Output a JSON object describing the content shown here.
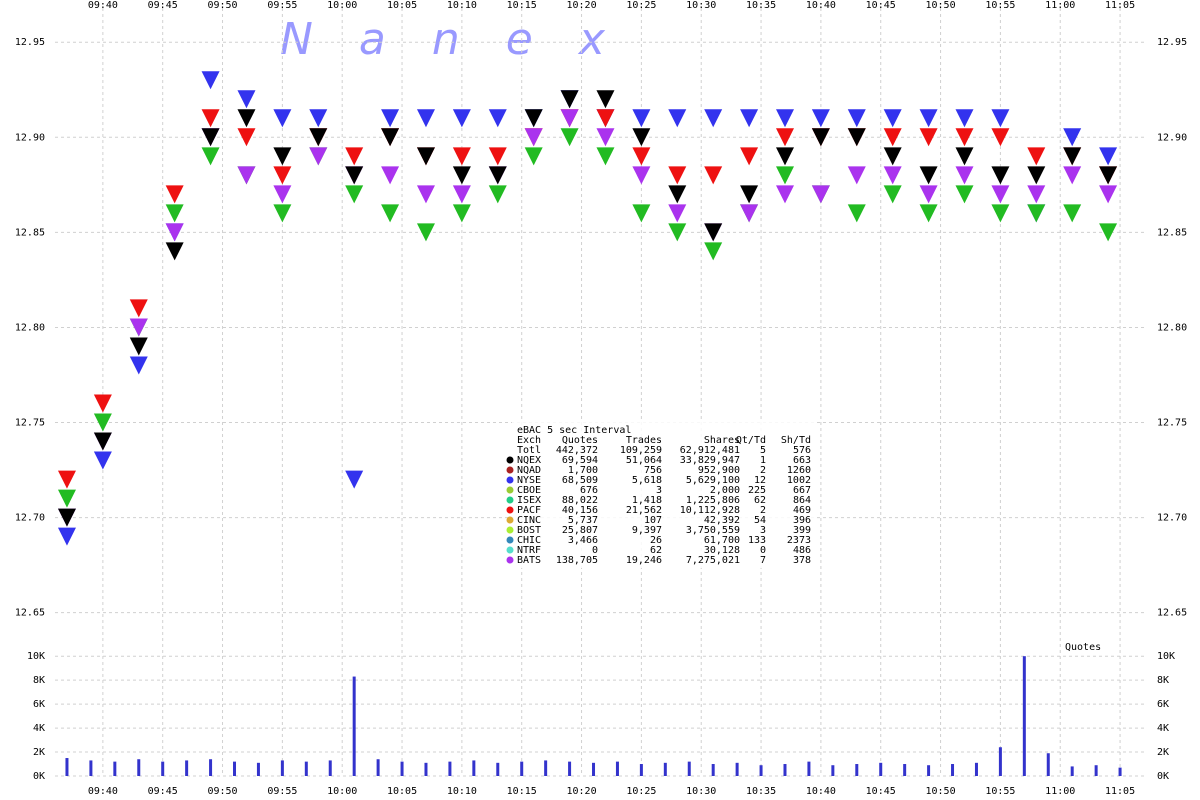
{
  "watermark": "Nanex",
  "chart_data": [
    {
      "type": "scatter",
      "xlim": [
        "09:36",
        "11:07"
      ],
      "xticks": [
        "09:40",
        "09:45",
        "09:50",
        "09:55",
        "10:00",
        "10:05",
        "10:10",
        "10:15",
        "10:20",
        "10:25",
        "10:30",
        "10:35",
        "10:40",
        "10:45",
        "10:50",
        "10:55",
        "11:00",
        "11:05"
      ],
      "ylim": [
        12.633,
        12.968
      ],
      "yticks": [
        12.65,
        {
          "value": 12.7,
          "label": "12.70"
        },
        12.75,
        {
          "value": 12.8,
          "label": "12.80"
        },
        12.85,
        {
          "value": 12.9,
          "label": "12.90"
        },
        12.95
      ],
      "grid": true,
      "x": [
        "09:37",
        "09:40",
        "09:43",
        "09:46",
        "09:49",
        "09:52",
        "09:55",
        "09:58",
        "10:01",
        "10:04",
        "10:07",
        "10:10",
        "10:13",
        "10:16",
        "10:19",
        "10:22",
        "10:25",
        "10:28",
        "10:31",
        "10:34",
        "10:37",
        "10:40",
        "10:43",
        "10:46",
        "10:49",
        "10:52",
        "10:55",
        "10:58",
        "11:01",
        "11:04"
      ],
      "series": [
        {
          "color": "#3333ee",
          "values": [
            12.69,
            12.73,
            12.78,
            12.85,
            12.93,
            12.92,
            12.91,
            12.91,
            12.72,
            12.91,
            12.91,
            12.91,
            12.91,
            12.91,
            12.92,
            12.91,
            12.91,
            12.91,
            12.91,
            12.91,
            12.91,
            12.91,
            12.91,
            12.91,
            12.91,
            12.91,
            12.91,
            12.86,
            12.9,
            12.89
          ]
        },
        {
          "color": "#22bb22",
          "values": [
            12.71,
            12.75,
            12.8,
            12.86,
            12.89,
            12.88,
            12.86,
            12.89,
            12.87,
            12.86,
            12.85,
            12.86,
            12.87,
            12.89,
            12.9,
            12.89,
            12.86,
            12.85,
            12.84,
            12.86,
            12.88,
            12.87,
            12.86,
            12.87,
            12.86,
            12.87,
            12.86,
            12.86,
            12.86,
            12.85
          ]
        },
        {
          "color": "#ee1111",
          "values": [
            12.72,
            12.76,
            12.81,
            12.87,
            12.91,
            12.9,
            12.88,
            12.9,
            12.89,
            12.9,
            12.89,
            12.89,
            12.89,
            12.9,
            12.91,
            12.91,
            12.89,
            12.88,
            12.88,
            12.89,
            12.9,
            12.9,
            12.9,
            12.9,
            12.9,
            12.9,
            12.9,
            12.89,
            12.89,
            12.88
          ]
        },
        {
          "color": "#aa33ee",
          "values": [
            12.7,
            12.74,
            12.8,
            12.85,
            12.9,
            12.88,
            12.87,
            12.89,
            12.88,
            12.88,
            12.87,
            12.87,
            12.88,
            12.9,
            12.91,
            12.9,
            12.88,
            12.86,
            12.85,
            12.86,
            12.87,
            12.87,
            12.88,
            12.88,
            12.87,
            12.88,
            12.87,
            12.87,
            12.88,
            12.87
          ]
        },
        {
          "color": "#000000",
          "values": [
            12.7,
            12.74,
            12.79,
            12.84,
            12.9,
            12.91,
            12.89,
            12.9,
            12.88,
            12.9,
            12.89,
            12.88,
            12.88,
            12.91,
            12.92,
            12.92,
            12.9,
            12.87,
            12.85,
            12.87,
            12.89,
            12.9,
            12.9,
            12.89,
            12.88,
            12.89,
            12.88,
            12.88,
            12.89,
            12.88
          ]
        }
      ]
    },
    {
      "type": "bar",
      "label": "Quotes",
      "color": "#3333cc",
      "ylim": [
        0,
        10600
      ],
      "yticks": [
        {
          "value": 0,
          "label": "0K"
        },
        {
          "value": 2000,
          "label": "2K"
        },
        {
          "value": 4000,
          "label": "4K"
        },
        {
          "value": 6000,
          "label": "6K"
        },
        {
          "value": 8000,
          "label": "8K"
        },
        {
          "value": 10000,
          "label": "10K"
        }
      ],
      "x": [
        "09:37",
        "09:39",
        "09:41",
        "09:43",
        "09:45",
        "09:47",
        "09:49",
        "09:51",
        "09:53",
        "09:55",
        "09:57",
        "09:59",
        "10:01",
        "10:03",
        "10:05",
        "10:07",
        "10:09",
        "10:11",
        "10:13",
        "10:15",
        "10:17",
        "10:19",
        "10:21",
        "10:23",
        "10:25",
        "10:27",
        "10:29",
        "10:31",
        "10:33",
        "10:35",
        "10:37",
        "10:39",
        "10:41",
        "10:43",
        "10:45",
        "10:47",
        "10:49",
        "10:51",
        "10:53",
        "10:55",
        "10:57",
        "10:59",
        "11:01",
        "11:03",
        "11:05"
      ],
      "values": [
        1500,
        1300,
        1200,
        1400,
        1200,
        1300,
        1400,
        1200,
        1100,
        1300,
        1200,
        1300,
        8300,
        1400,
        1200,
        1100,
        1200,
        1300,
        1100,
        1200,
        1300,
        1200,
        1100,
        1200,
        1000,
        1100,
        1200,
        1000,
        1100,
        900,
        1000,
        1200,
        900,
        1000,
        1100,
        1000,
        900,
        1000,
        1100,
        2400,
        10000,
        1900,
        800,
        900,
        700
      ]
    }
  ],
  "stats": {
    "title": "eBAC 5 sec Interval",
    "header": [
      "Exch",
      "Quotes",
      "Trades",
      "Shares",
      "Qt/Td",
      "Sh/Td"
    ],
    "rows": [
      {
        "cells": [
          "Totl",
          "442,372",
          "109,259",
          "62,912,481",
          "5",
          "576"
        ]
      },
      {
        "color": "#000000",
        "cells": [
          "NQEX",
          "69,594",
          "51,064",
          "33,829,947",
          "1",
          "663"
        ]
      },
      {
        "color": "#aa2222",
        "cells": [
          "NQAD",
          "1,700",
          "756",
          "952,900",
          "2",
          "1260"
        ]
      },
      {
        "color": "#3333ee",
        "cells": [
          "NYSE",
          "68,509",
          "5,618",
          "5,629,100",
          "12",
          "1002"
        ]
      },
      {
        "color": "#99cc33",
        "cells": [
          "CBOE",
          "676",
          "3",
          "2,000",
          "225",
          "667"
        ]
      },
      {
        "color": "#22cc88",
        "cells": [
          "ISEX",
          "88,022",
          "1,418",
          "1,225,806",
          "62",
          "864"
        ]
      },
      {
        "color": "#ee1111",
        "cells": [
          "PACF",
          "40,156",
          "21,562",
          "10,112,928",
          "2",
          "469"
        ]
      },
      {
        "color": "#ddaa33",
        "cells": [
          "CINC",
          "5,737",
          "107",
          "42,392",
          "54",
          "396"
        ]
      },
      {
        "color": "#aaee33",
        "cells": [
          "BOST",
          "25,807",
          "9,397",
          "3,750,559",
          "3",
          "399"
        ]
      },
      {
        "color": "#3388bb",
        "cells": [
          "CHIC",
          "3,466",
          "26",
          "61,700",
          "133",
          "2373"
        ]
      },
      {
        "color": "#55ddcc",
        "cells": [
          "NTRF",
          "0",
          "62",
          "30,128",
          "0",
          "486"
        ]
      },
      {
        "color": "#aa33ee",
        "cells": [
          "BATS",
          "138,705",
          "19,246",
          "7,275,021",
          "7",
          "378"
        ]
      }
    ]
  }
}
